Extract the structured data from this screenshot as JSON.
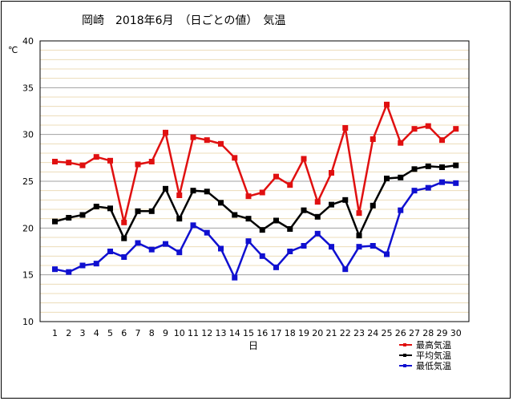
{
  "chart_data": {
    "type": "line",
    "title": "岡崎　2018年6月　（日ごとの値）　気温",
    "ylabel": "℃",
    "xlabel": "日",
    "ylim": [
      10,
      40
    ],
    "yticks": [
      10,
      15,
      20,
      25,
      30,
      35,
      40
    ],
    "grid": true,
    "legend_position": "bottom-right",
    "x": [
      1,
      2,
      3,
      4,
      5,
      6,
      7,
      8,
      9,
      10,
      11,
      12,
      13,
      14,
      15,
      16,
      17,
      18,
      19,
      20,
      21,
      22,
      23,
      24,
      25,
      26,
      27,
      28,
      29,
      30
    ],
    "series": [
      {
        "name": "最高気温",
        "color": "#e01010",
        "values": [
          27.1,
          27.0,
          26.7,
          27.6,
          27.2,
          20.6,
          26.8,
          27.1,
          30.2,
          23.5,
          29.7,
          29.4,
          29.0,
          27.5,
          23.4,
          23.8,
          25.5,
          24.6,
          27.4,
          22.8,
          25.9,
          30.7,
          21.6,
          29.5,
          33.2,
          29.1,
          30.6,
          30.9,
          29.4,
          30.6
        ]
      },
      {
        "name": "平均気温",
        "color": "#000000",
        "values": [
          20.7,
          21.1,
          21.4,
          22.3,
          22.1,
          18.9,
          21.8,
          21.8,
          24.2,
          21.0,
          24.0,
          23.9,
          22.7,
          21.4,
          21.0,
          19.8,
          20.8,
          19.9,
          21.9,
          21.2,
          22.5,
          23.0,
          19.2,
          22.4,
          25.3,
          25.4,
          26.3,
          26.6,
          26.5,
          26.7
        ]
      },
      {
        "name": "最低気温",
        "color": "#1010d0",
        "values": [
          15.6,
          15.3,
          16.0,
          16.2,
          17.5,
          16.9,
          18.4,
          17.7,
          18.3,
          17.4,
          20.3,
          19.5,
          17.8,
          14.7,
          18.6,
          17.0,
          15.8,
          17.5,
          18.1,
          19.4,
          18.0,
          15.6,
          18.0,
          18.1,
          17.2,
          21.9,
          24.0,
          24.3,
          24.9,
          24.8
        ]
      }
    ]
  }
}
